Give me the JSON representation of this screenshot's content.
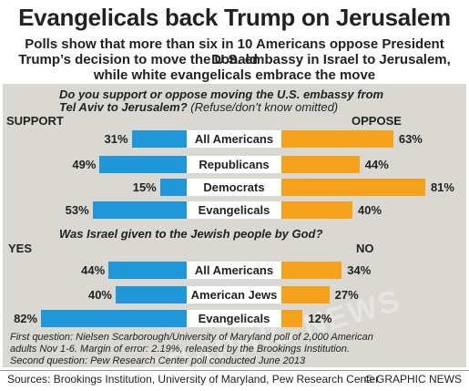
{
  "title": "Evangelicals back Trump on Jerusalem",
  "subtitle_lines": [
    "Polls show that more than six in 10 Americans oppose President Donald",
    "Trump’s decision to move the U.S. embassy in Israel to Jerusalem,",
    "while white evangelicals embrace the move"
  ],
  "chart_data": [
    {
      "type": "bar",
      "question_line1": "Do you support or oppose moving the U.S. embassy from",
      "question_line2": "Tel Aviv to Jerusalem?",
      "question_note": "(Refuse/don’t know omitted)",
      "left_header": "SUPPORT",
      "right_header": "OPPOSE",
      "unit": "%",
      "categories": [
        "All Americans",
        "Republicans",
        "Democrats",
        "Evangelicals"
      ],
      "series": [
        {
          "name": "SUPPORT",
          "values": [
            31,
            49,
            15,
            53
          ],
          "color": "#1f97d8"
        },
        {
          "name": "OPPOSE",
          "values": [
            63,
            44,
            81,
            40
          ],
          "color": "#f6a11c"
        }
      ]
    },
    {
      "type": "bar",
      "question_line1": "Was Israel given to the Jewish people by God?",
      "left_header": "YES",
      "right_header": "NO",
      "unit": "%",
      "categories": [
        "All Americans",
        "American Jews",
        "Evangelicals"
      ],
      "series": [
        {
          "name": "YES",
          "values": [
            44,
            40,
            82
          ],
          "color": "#1f97d8"
        },
        {
          "name": "NO",
          "values": [
            34,
            27,
            12
          ],
          "color": "#f6a11c"
        }
      ]
    }
  ],
  "watermark": "GRAPHIC NEWS",
  "footnote_lines": [
    "First question: Nielsen Scarborough/University of Maryland poll of 2,000 American",
    "adults Nov 1-6. Margin of error: 2.19%, released by the Brookings Institution.",
    "Second question: Pew Research Center poll conducted June 2013"
  ],
  "sources": "Sources: Brookings Institution, University of Maryland, Pew Research Center",
  "brand": "© GRAPHIC NEWS"
}
